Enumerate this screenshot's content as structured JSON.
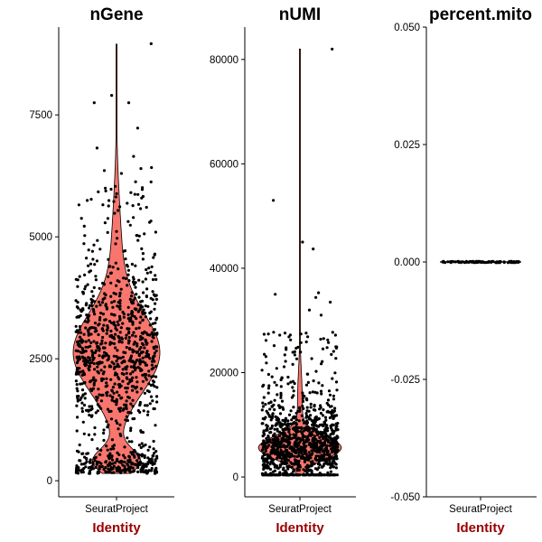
{
  "chart_data": [
    {
      "type": "violin",
      "title": "nGene",
      "xlabel": "Identity",
      "categories": [
        "SeuratProject"
      ],
      "ylim": [
        -330,
        9300
      ],
      "yticks": [
        0,
        2500,
        5000,
        7500
      ],
      "ytick_labels": [
        "0",
        "2500",
        "5000",
        "7500"
      ],
      "violin": {
        "min": 150,
        "max": 8950,
        "median": 2500,
        "n_cells": 2700,
        "peak_density_at": 2500,
        "secondary_peak_at": 300
      },
      "outliers": [
        {
          "x": -0.55,
          "y": 7750
        },
        {
          "x": -0.48,
          "y": 6820
        },
        {
          "x": -0.12,
          "y": 7900
        },
        {
          "x": 0.3,
          "y": 7750
        },
        {
          "x": 0.52,
          "y": 7230
        },
        {
          "x": 0.42,
          "y": 6650
        },
        {
          "x": 0.85,
          "y": 8960
        },
        {
          "x": 0.86,
          "y": 6420
        },
        {
          "x": 0.6,
          "y": 6400
        },
        {
          "x": 0.12,
          "y": 6300
        },
        {
          "x": -0.3,
          "y": 6360
        }
      ],
      "fill": "#f8766d",
      "grid": false,
      "legend": "none"
    },
    {
      "type": "violin",
      "title": "nUMI",
      "xlabel": "Identity",
      "categories": [
        "SeuratProject"
      ],
      "ylim": [
        -3800,
        86200
      ],
      "yticks": [
        0,
        20000,
        40000,
        60000,
        80000
      ],
      "ytick_labels": [
        "0",
        "20000",
        "40000",
        "60000",
        "80000"
      ],
      "violin": {
        "min": 500,
        "max": 82000,
        "median": 5500,
        "n_cells": 2700,
        "peak_density_at": 5600
      },
      "outliers": [
        {
          "x": -0.7,
          "y": 53000
        },
        {
          "x": 0.07,
          "y": 45000
        },
        {
          "x": 0.35,
          "y": 43700
        },
        {
          "x": -0.65,
          "y": 35000
        },
        {
          "x": 0.49,
          "y": 35300
        },
        {
          "x": 0.42,
          "y": 34400
        },
        {
          "x": 0.8,
          "y": 33500
        },
        {
          "x": 0.85,
          "y": 82000
        },
        {
          "x": 0.56,
          "y": 31000
        },
        {
          "x": 0.25,
          "y": 32000
        }
      ],
      "fill": "#f8766d",
      "grid": false,
      "legend": "none"
    },
    {
      "type": "violin",
      "title": "percent.mito",
      "xlabel": "Identity",
      "categories": [
        "SeuratProject"
      ],
      "ylim": [
        -0.05,
        0.05
      ],
      "yticks": [
        -0.05,
        -0.025,
        0,
        0.025,
        0.05
      ],
      "ytick_labels": [
        "-0.050",
        "-0.025",
        "0.000",
        "0.025",
        "0.050"
      ],
      "violin": {
        "min": 0,
        "max": 0,
        "median": 0,
        "n_cells": 2700
      },
      "outliers": [],
      "fill": "#f8766d",
      "grid": false,
      "legend": "none"
    }
  ],
  "colors": {
    "violin_fill": "#f8766d",
    "points": "#000000",
    "xlabel": "#990000"
  }
}
